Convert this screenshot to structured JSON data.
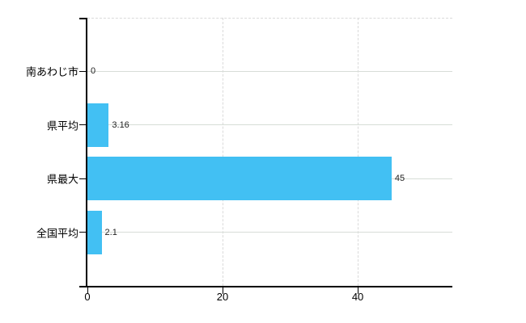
{
  "chart_data": {
    "type": "bar",
    "orientation": "horizontal",
    "title": "",
    "categories": [
      "南あわじ市",
      "県平均",
      "県最大",
      "全国平均"
    ],
    "values": [
      0,
      3.16,
      45,
      2.1
    ],
    "value_labels": [
      "0",
      "3.16",
      "45",
      "2.1"
    ],
    "x_ticks": [
      0,
      20,
      40
    ],
    "x_tick_labels": [
      "0",
      "20",
      "40"
    ],
    "xlim": [
      0,
      54
    ],
    "grid": true,
    "legend": false,
    "bar_color": "#42c0f3"
  },
  "colors": {
    "background": "#ffffff",
    "bar": "#42c0f3",
    "axis": "#000000",
    "grid_solid": "#d7ddd7",
    "grid_dashed": "#dadada",
    "label_text": "#000000",
    "value_text": "#222222"
  }
}
